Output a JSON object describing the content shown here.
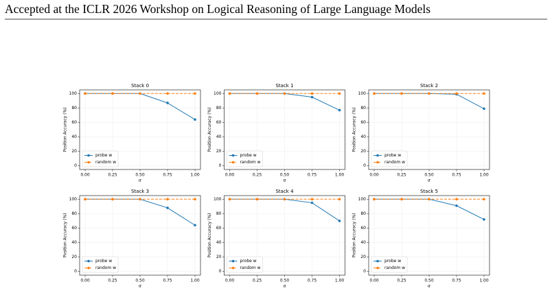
{
  "header": {
    "title": "Accepted at the ICLR 2026 Workshop on Logical Reasoning of Large Language Models"
  },
  "chart_data": [
    {
      "type": "line",
      "title": "Stack 0",
      "xlabel": "α",
      "ylabel": "Position Accuracy (%)",
      "x": [
        0,
        0.25,
        0.5,
        0.75,
        1.0
      ],
      "series": [
        {
          "name": "probe w",
          "color": "#1f77b4",
          "dashed": false,
          "values": [
            100,
            100,
            100,
            87,
            64
          ]
        },
        {
          "name": "random w",
          "color": "#ff7f0e",
          "dashed": true,
          "values": [
            100,
            100,
            100,
            100,
            100
          ]
        }
      ],
      "xlim": [
        -0.05,
        1.05
      ],
      "ylim": [
        -5,
        105
      ],
      "xticks": [
        {
          "value": 0,
          "label": "0.00"
        },
        {
          "value": 0.25,
          "label": "0.25"
        },
        {
          "value": 0.5,
          "label": "0.50"
        },
        {
          "value": 0.75,
          "label": "0.75"
        },
        {
          "value": 1.0,
          "label": "1.00"
        }
      ],
      "yticks": [
        0,
        20,
        40,
        60,
        80,
        100
      ],
      "grid": true,
      "legend": "lower left"
    },
    {
      "type": "line",
      "title": "Stack 1",
      "xlabel": "α",
      "ylabel": "Position Accuracy (%)",
      "x": [
        0,
        0.25,
        0.5,
        0.75,
        1.0
      ],
      "series": [
        {
          "name": "probe w",
          "color": "#1f77b4",
          "dashed": false,
          "values": [
            100,
            100,
            100,
            95,
            77
          ]
        },
        {
          "name": "random w",
          "color": "#ff7f0e",
          "dashed": true,
          "values": [
            100,
            100,
            100,
            100,
            100
          ]
        }
      ],
      "xlim": [
        -0.05,
        1.05
      ],
      "ylim": [
        -5,
        105
      ],
      "xticks": [
        {
          "value": 0,
          "label": "0.00"
        },
        {
          "value": 0.25,
          "label": "0.25"
        },
        {
          "value": 0.5,
          "label": "0.50"
        },
        {
          "value": 0.75,
          "label": "0.75"
        },
        {
          "value": 1.0,
          "label": "1.00"
        }
      ],
      "yticks": [
        0,
        20,
        40,
        60,
        80,
        100
      ],
      "grid": true,
      "legend": "lower left"
    },
    {
      "type": "line",
      "title": "Stack 2",
      "xlabel": "α",
      "ylabel": "Position Accuracy (%)",
      "x": [
        0,
        0.25,
        0.5,
        0.75,
        1.0
      ],
      "series": [
        {
          "name": "probe w",
          "color": "#1f77b4",
          "dashed": false,
          "values": [
            100,
            100,
            100,
            99,
            79
          ]
        },
        {
          "name": "random w",
          "color": "#ff7f0e",
          "dashed": true,
          "values": [
            100,
            100,
            100,
            100,
            100
          ]
        }
      ],
      "xlim": [
        -0.05,
        1.05
      ],
      "ylim": [
        -5,
        105
      ],
      "xticks": [
        {
          "value": 0,
          "label": "0.00"
        },
        {
          "value": 0.25,
          "label": "0.25"
        },
        {
          "value": 0.5,
          "label": "0.50"
        },
        {
          "value": 0.75,
          "label": "0.75"
        },
        {
          "value": 1.0,
          "label": "1.00"
        }
      ],
      "yticks": [
        0,
        20,
        40,
        60,
        80,
        100
      ],
      "grid": true,
      "legend": "lower left"
    },
    {
      "type": "line",
      "title": "Stack 3",
      "xlabel": "α",
      "ylabel": "Position Accuracy (%)",
      "x": [
        0,
        0.25,
        0.5,
        0.75,
        1.0
      ],
      "series": [
        {
          "name": "probe w",
          "color": "#1f77b4",
          "dashed": false,
          "values": [
            100,
            100,
            100,
            88,
            64
          ]
        },
        {
          "name": "random w",
          "color": "#ff7f0e",
          "dashed": true,
          "values": [
            100,
            100,
            100,
            100,
            100
          ]
        }
      ],
      "xlim": [
        -0.05,
        1.05
      ],
      "ylim": [
        -5,
        105
      ],
      "xticks": [
        {
          "value": 0,
          "label": "0.00"
        },
        {
          "value": 0.25,
          "label": "0.25"
        },
        {
          "value": 0.5,
          "label": "0.50"
        },
        {
          "value": 0.75,
          "label": "0.75"
        },
        {
          "value": 1.0,
          "label": "1.00"
        }
      ],
      "yticks": [
        0,
        20,
        40,
        60,
        80,
        100
      ],
      "grid": true,
      "legend": "lower left"
    },
    {
      "type": "line",
      "title": "Stack 4",
      "xlabel": "α",
      "ylabel": "Position Accuracy (%)",
      "x": [
        0,
        0.25,
        0.5,
        0.75,
        1.0
      ],
      "series": [
        {
          "name": "probe w",
          "color": "#1f77b4",
          "dashed": false,
          "values": [
            100,
            100,
            100,
            95,
            70
          ]
        },
        {
          "name": "random w",
          "color": "#ff7f0e",
          "dashed": true,
          "values": [
            100,
            100,
            100,
            100,
            100
          ]
        }
      ],
      "xlim": [
        -0.05,
        1.05
      ],
      "ylim": [
        -5,
        105
      ],
      "xticks": [
        {
          "value": 0,
          "label": "0.00"
        },
        {
          "value": 0.25,
          "label": "0.25"
        },
        {
          "value": 0.5,
          "label": "0.50"
        },
        {
          "value": 0.75,
          "label": "0.75"
        },
        {
          "value": 1.0,
          "label": "1.00"
        }
      ],
      "yticks": [
        0,
        20,
        40,
        60,
        80,
        100
      ],
      "grid": true,
      "legend": "lower left"
    },
    {
      "type": "line",
      "title": "Stack 5",
      "xlabel": "α",
      "ylabel": "Position Accuracy (%)",
      "x": [
        0,
        0.25,
        0.5,
        0.75,
        1.0
      ],
      "series": [
        {
          "name": "probe w",
          "color": "#1f77b4",
          "dashed": false,
          "values": [
            100,
            100,
            100,
            91,
            72
          ]
        },
        {
          "name": "random w",
          "color": "#ff7f0e",
          "dashed": true,
          "values": [
            100,
            100,
            100,
            100,
            100
          ]
        }
      ],
      "xlim": [
        -0.05,
        1.05
      ],
      "ylim": [
        -5,
        105
      ],
      "xticks": [
        {
          "value": 0,
          "label": "0.00"
        },
        {
          "value": 0.25,
          "label": "0.25"
        },
        {
          "value": 0.5,
          "label": "0.50"
        },
        {
          "value": 0.75,
          "label": "0.75"
        },
        {
          "value": 1.0,
          "label": "1.00"
        }
      ],
      "yticks": [
        0,
        20,
        40,
        60,
        80,
        100
      ],
      "grid": true,
      "legend": "lower left"
    }
  ]
}
